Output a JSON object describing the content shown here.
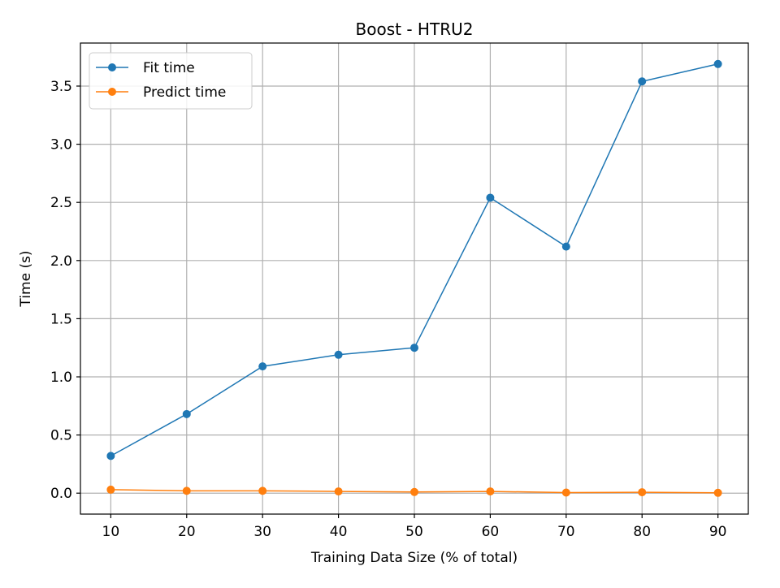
{
  "chart_data": {
    "type": "line",
    "title": "Boost - HTRU2",
    "xlabel": "Training Data Size (% of total)",
    "ylabel": "Time (s)",
    "x": [
      10,
      20,
      30,
      40,
      50,
      60,
      70,
      80,
      90
    ],
    "xticks": [
      "10",
      "20",
      "30",
      "40",
      "50",
      "60",
      "70",
      "80",
      "90"
    ],
    "yticks": [
      "0.0",
      "0.5",
      "1.0",
      "1.5",
      "2.0",
      "2.5",
      "3.0",
      "3.5"
    ],
    "xlim": [
      6,
      94
    ],
    "ylim": [
      -0.18,
      3.87
    ],
    "grid": true,
    "legend_position": "upper-left",
    "series": [
      {
        "name": "Fit time",
        "color": "#1f77b4",
        "marker": "circle",
        "values": [
          0.32,
          0.68,
          1.09,
          1.19,
          1.25,
          2.54,
          2.12,
          3.54,
          3.69
        ]
      },
      {
        "name": "Predict time",
        "color": "#ff7f0e",
        "marker": "circle",
        "values": [
          0.03,
          0.02,
          0.02,
          0.015,
          0.01,
          0.015,
          0.005,
          0.008,
          0.003
        ]
      }
    ]
  }
}
